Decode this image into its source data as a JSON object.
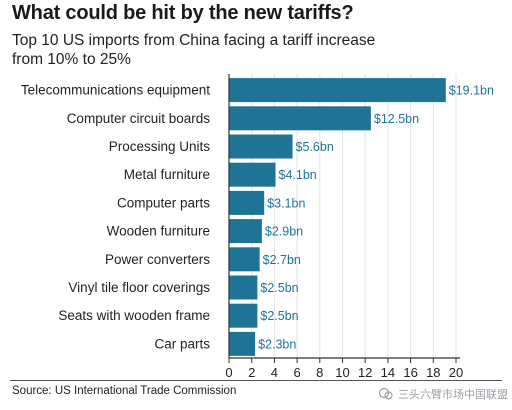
{
  "header": {
    "title": "What could be hit by the new tariffs?",
    "subtitle_line1": "Top 10 US imports from China facing a tariff increase",
    "subtitle_line2": "from 10% to 25%"
  },
  "footer": {
    "source": "Source: US International Trade Commission",
    "watermark": "三头六臂市场中国联盟"
  },
  "colors": {
    "bar": "#1f7495",
    "bar_label": "#1f7495",
    "axis": "#333333",
    "grid": "#e3e3e3",
    "text": "#222222"
  },
  "chart_data": {
    "type": "bar",
    "orientation": "horizontal",
    "categories": [
      "Telecommunications equipment",
      "Computer circuit boards",
      "Processing Units",
      "Metal furniture",
      "Computer parts",
      "Wooden furniture",
      "Power converters",
      "Vinyl tile floor coverings",
      "Seats with wooden frame",
      "Car parts"
    ],
    "values": [
      19.1,
      12.5,
      5.6,
      4.1,
      3.1,
      2.9,
      2.7,
      2.5,
      2.5,
      2.3
    ],
    "value_labels": [
      "$19.1bn",
      "$12.5bn",
      "$5.6bn",
      "$4.1bn",
      "$3.1bn",
      "$2.9bn",
      "$2.7bn",
      "$2.5bn",
      "$2.5bn",
      "$2.3bn"
    ],
    "xlim": [
      0,
      20
    ],
    "xticks": [
      0,
      2,
      4,
      6,
      8,
      10,
      12,
      14,
      16,
      18,
      20
    ],
    "grid": true,
    "legend": "none"
  }
}
